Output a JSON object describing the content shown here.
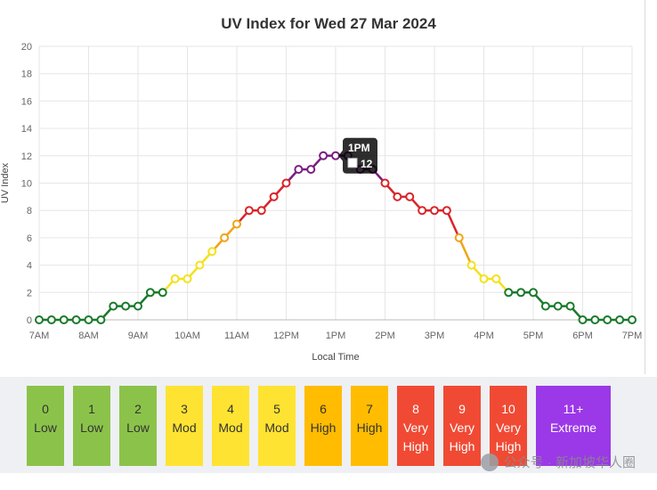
{
  "chart_data": {
    "type": "line",
    "title": "UV Index for Wed 27 Mar 2024",
    "xlabel": "Local Time",
    "ylabel": "UV Index",
    "ylim": [
      0,
      20
    ],
    "yticks": [
      0,
      2,
      4,
      6,
      8,
      10,
      12,
      14,
      16,
      18,
      20
    ],
    "xticks": [
      "7AM",
      "8AM",
      "9AM",
      "10AM",
      "11AM",
      "12PM",
      "1PM",
      "2PM",
      "3PM",
      "4PM",
      "5PM",
      "6PM",
      "7PM"
    ],
    "grid": true,
    "series": [
      {
        "values": [
          0,
          0,
          0,
          0,
          0,
          0,
          1,
          1,
          1,
          2,
          2,
          3,
          3,
          4,
          5,
          6,
          7,
          8,
          8,
          9,
          10,
          11,
          11,
          12,
          12,
          12,
          11,
          11,
          10,
          9,
          9,
          8,
          8,
          8,
          6,
          4,
          3,
          3,
          2,
          2,
          2,
          1,
          1,
          1,
          0,
          0,
          0,
          0,
          0
        ]
      }
    ],
    "tooltip": {
      "title": "1PM",
      "value": "12"
    }
  },
  "colors": {
    "low": "#1a7a2c",
    "moderate": "#f5e11b",
    "high": "#f0a418",
    "very_high": "#d9252b",
    "extreme": "#7a1f82",
    "grid": "#e6e6e6",
    "axis": "#555555"
  },
  "legend": [
    {
      "value": "0",
      "label": "Low",
      "color": "#8bc34a"
    },
    {
      "value": "1",
      "label": "Low",
      "color": "#8bc34a"
    },
    {
      "value": "2",
      "label": "Low",
      "color": "#8bc34a"
    },
    {
      "value": "3",
      "label": "Mod",
      "color": "#ffe332"
    },
    {
      "value": "4",
      "label": "Mod",
      "color": "#ffe332"
    },
    {
      "value": "5",
      "label": "Mod",
      "color": "#ffe332"
    },
    {
      "value": "6",
      "label": "High",
      "color": "#ffbc00"
    },
    {
      "value": "7",
      "label": "High",
      "color": "#ffbc00"
    },
    {
      "value": "8",
      "label": "Very High",
      "color": "#f04a34"
    },
    {
      "value": "9",
      "label": "Very High",
      "color": "#f04a34"
    },
    {
      "value": "10",
      "label": "Very High",
      "color": "#f04a34"
    },
    {
      "value": "11+",
      "label": "Extreme",
      "color": "#9b38e8"
    }
  ],
  "watermark": "公众号 · 新加坡华人圈"
}
